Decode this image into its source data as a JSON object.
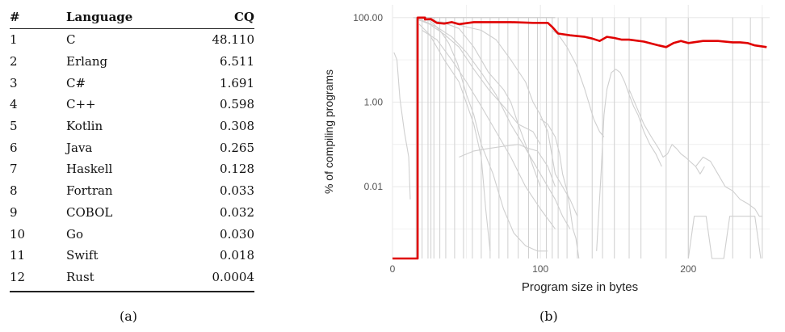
{
  "table": {
    "headers": [
      "#",
      "Language",
      "CQ"
    ],
    "rows": [
      [
        "1",
        "C",
        "48.110"
      ],
      [
        "2",
        "Erlang",
        "6.511"
      ],
      [
        "3",
        "C#",
        "1.691"
      ],
      [
        "4",
        "C++",
        "0.598"
      ],
      [
        "5",
        "Kotlin",
        "0.308"
      ],
      [
        "6",
        "Java",
        "0.265"
      ],
      [
        "7",
        "Haskell",
        "0.128"
      ],
      [
        "8",
        "Fortran",
        "0.033"
      ],
      [
        "9",
        "COBOL",
        "0.032"
      ],
      [
        "10",
        "Go",
        "0.030"
      ],
      [
        "11",
        "Swift",
        "0.018"
      ],
      [
        "12",
        "Rust",
        "0.0004"
      ]
    ]
  },
  "captions": {
    "a": "(a)",
    "b": "(b)"
  },
  "chart_data": {
    "type": "line",
    "xlabel": "Program size in bytes",
    "ylabel": "% of compiling programs",
    "x_ticks": [
      0,
      100,
      200
    ],
    "y_ticks": [
      "100.00",
      "1.00",
      "0.01"
    ],
    "y_scale": "log",
    "y_tick_values": [
      100,
      1,
      0.01
    ],
    "xlim": [
      0,
      255
    ],
    "ylim": [
      0.0002,
      200
    ],
    "grid": true,
    "colors": {
      "highlight": "#e00000",
      "others": "#cfcfcf",
      "grid": "#ebebeb",
      "text": "#333333"
    },
    "series": [
      {
        "highlight": true,
        "x": [
          0,
          16,
          16,
          17,
          17,
          18,
          18,
          22,
          22,
          26,
          30,
          35,
          40,
          45,
          55,
          65,
          80,
          95,
          105,
          108,
          112,
          120,
          130,
          135,
          140,
          145,
          150,
          155,
          160,
          170,
          180,
          185,
          190,
          195,
          200,
          210,
          220,
          230,
          235,
          240,
          245,
          253
        ],
        "y": [
          0.0002,
          0.0002,
          0.0002,
          0.0002,
          100,
          100,
          100,
          100,
          90,
          92,
          75,
          72,
          78,
          70,
          78,
          78,
          78,
          75,
          75,
          60,
          42,
          38,
          35,
          32,
          28,
          35,
          33,
          30,
          30,
          27,
          22,
          20,
          25,
          28,
          25,
          28,
          28,
          26,
          26,
          25,
          22,
          20
        ]
      },
      {
        "x": [
          1,
          3,
          5,
          8,
          11,
          12
        ],
        "y": [
          15,
          10,
          1.2,
          0.2,
          0.05,
          0.005
        ]
      },
      {
        "x": [
          14,
          17,
          20,
          24,
          28,
          33,
          38,
          44,
          50,
          55,
          60,
          68,
          75,
          82,
          90,
          98,
          105
        ],
        "y": [
          100,
          99,
          95,
          90,
          70,
          45,
          25,
          8,
          1.5,
          0.5,
          0.1,
          0.02,
          0.003,
          0.0008,
          0.0004,
          0.0003,
          0.0003
        ]
      },
      {
        "x": [
          16,
          20,
          25,
          30,
          40,
          50,
          60,
          70,
          80,
          90,
          95,
          100,
          105,
          110,
          115,
          120,
          125
        ],
        "y": [
          100,
          95,
          85,
          80,
          75,
          60,
          50,
          30,
          10,
          3,
          1,
          0.5,
          0.2,
          0.02,
          0.01,
          0.005,
          0.002
        ]
      },
      {
        "x": [
          16,
          20,
          25,
          35,
          45,
          55,
          65,
          75,
          80,
          85,
          90,
          95,
          100
        ],
        "y": [
          100,
          95,
          90,
          75,
          55,
          20,
          5,
          2,
          1,
          0.3,
          0.1,
          0.03,
          0.01
        ]
      },
      {
        "x": [
          16,
          22,
          30,
          40,
          50,
          60,
          70,
          80,
          90,
          100,
          110,
          115,
          120
        ],
        "y": [
          100,
          80,
          60,
          35,
          15,
          5,
          1.5,
          0.3,
          0.08,
          0.02,
          0.005,
          0.002,
          0.001
        ]
      },
      {
        "x": [
          17,
          25,
          35,
          45,
          55,
          65,
          75,
          85,
          95,
          100
        ],
        "y": [
          90,
          70,
          40,
          20,
          6,
          2,
          0.8,
          0.3,
          0.2,
          0.1
        ]
      },
      {
        "x": [
          18,
          25,
          35,
          45,
          55,
          60,
          63,
          66
        ],
        "y": [
          70,
          40,
          10,
          3,
          0.3,
          0.05,
          0.003,
          0.0003
        ]
      },
      {
        "x": [
          20,
          30,
          40,
          50,
          60,
          70,
          80,
          90,
          100,
          110
        ],
        "y": [
          50,
          30,
          10,
          3,
          0.8,
          0.2,
          0.05,
          0.01,
          0.003,
          0.001
        ]
      },
      {
        "x": [
          45,
          55,
          65,
          75,
          85,
          92,
          98,
          105,
          110
        ],
        "y": [
          0.05,
          0.07,
          0.08,
          0.09,
          0.1,
          0.08,
          0.07,
          0.03,
          0.01
        ]
      },
      {
        "x": [
          100,
          105,
          110,
          113,
          115,
          118,
          120,
          122,
          124,
          126
        ],
        "y": [
          0.4,
          0.3,
          0.15,
          0.06,
          0.02,
          0.008,
          0.003,
          0.001,
          0.0006,
          0.0002
        ]
      },
      {
        "x": [
          108,
          112,
          118,
          124,
          130,
          136,
          140,
          143
        ],
        "y": [
          50,
          40,
          20,
          8,
          2,
          0.4,
          0.2,
          0.15
        ]
      },
      {
        "x": [
          138,
          141,
          143,
          145,
          148,
          151,
          154,
          157,
          160,
          163,
          166,
          170,
          174,
          178,
          182
        ],
        "y": [
          0.0003,
          0.02,
          0.5,
          2,
          5,
          6,
          5,
          3,
          1.5,
          0.8,
          0.5,
          0.2,
          0.1,
          0.06,
          0.03
        ]
      },
      {
        "x": [
          160,
          170,
          175,
          180,
          183,
          186,
          189,
          192,
          195,
          198,
          201,
          205,
          208,
          211
        ],
        "y": [
          2,
          0.3,
          0.15,
          0.08,
          0.05,
          0.06,
          0.1,
          0.08,
          0.06,
          0.05,
          0.04,
          0.03,
          0.02,
          0.03
        ]
      },
      {
        "x": [
          205,
          210,
          215,
          220,
          225,
          230,
          235,
          240,
          245,
          248,
          250
        ],
        "y": [
          0.03,
          0.05,
          0.04,
          0.02,
          0.01,
          0.008,
          0.005,
          0.004,
          0.003,
          0.002,
          0.002
        ]
      },
      {
        "x": [
          200,
          204,
          208,
          212,
          216,
          220,
          224,
          228,
          232,
          236,
          240,
          245,
          249
        ],
        "y": [
          0.0002,
          0.002,
          0.002,
          0.002,
          0.0002,
          0.0002,
          0.0002,
          0.002,
          0.002,
          0.002,
          0.002,
          0.002,
          0.0002
        ]
      }
    ],
    "verticals_x": [
      16,
      20,
      24,
      26,
      28,
      32,
      36,
      42,
      48,
      54,
      60,
      66,
      72,
      78,
      85,
      92,
      98,
      104,
      108,
      112,
      118,
      125,
      135,
      142,
      150,
      160,
      168,
      185,
      200,
      230,
      242,
      250
    ]
  }
}
